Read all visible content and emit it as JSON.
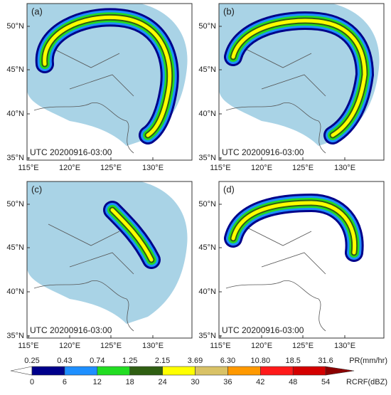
{
  "panels": [
    {
      "label": "(a)",
      "timestamp": "UTC 20200916-03:00"
    },
    {
      "label": "(b)",
      "timestamp": "UTC 20200916-03:00"
    },
    {
      "label": "(c)",
      "timestamp": "UTC 20200916-03:00"
    },
    {
      "label": "(d)",
      "timestamp": "UTC 20200916-03:00"
    }
  ],
  "axes": {
    "lat_labels": [
      "50°N",
      "45°N",
      "40°N",
      "35°N"
    ],
    "lon_labels": [
      "115°E",
      "120°E",
      "125°E",
      "130°E"
    ]
  },
  "colorbar": {
    "pr_labels": [
      "0.25",
      "0.43",
      "0.74",
      "1.25",
      "2.15",
      "3.69",
      "6.30",
      "10.80",
      "18.5",
      "31.6"
    ],
    "pr_unit": "PR(mm/hr)",
    "dbz_labels": [
      0,
      6,
      12,
      18,
      24,
      30,
      36,
      42,
      48,
      54
    ],
    "dbz_unit": "RCRF(dBZ)",
    "colors": [
      "#ffffff",
      "#00008b",
      "#1e8fff",
      "#22dd22",
      "#2f5f12",
      "#ffff00",
      "#d9c266",
      "#ff9900",
      "#ff1a1a",
      "#d40000",
      "#8b0000"
    ]
  }
}
